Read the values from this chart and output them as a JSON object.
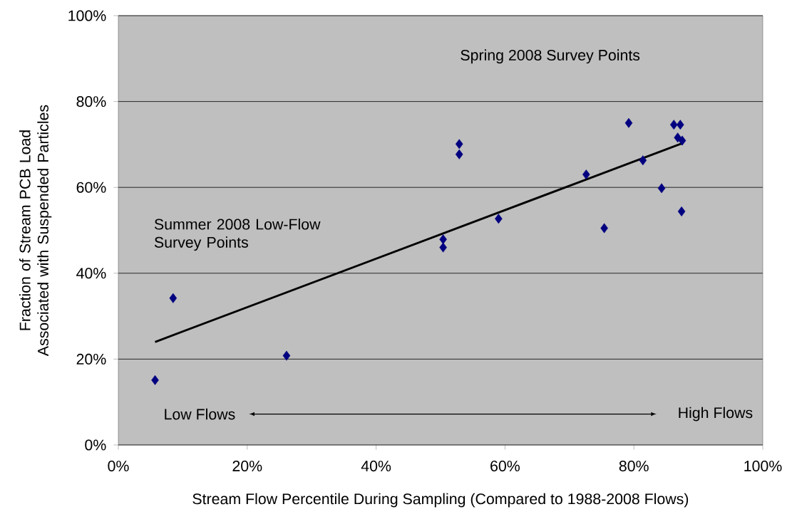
{
  "chart_data": {
    "type": "scatter",
    "xlabel": "Stream Flow Percentile During Sampling (Compared to 1988-2008  Flows)",
    "ylabel": "Fraction of Stream PCB Load Associated with Suspended Particles",
    "annotations": [
      "Spring 2008 Survey Points",
      "Summer 2008 Low-Flow Survey Points",
      "Low Flows",
      "High Flows"
    ],
    "series": [
      {
        "color": "#000080",
        "marker": "diamond",
        "x": [
          5.7,
          8.5,
          26.1,
          50.4,
          50.4,
          52.9,
          52.9,
          59.0,
          72.6,
          75.4,
          79.2,
          81.4,
          84.3,
          86.2,
          86.8,
          87.2,
          87.5,
          87.4
        ],
        "values": [
          15.1,
          34.2,
          20.8,
          47.9,
          46.0,
          70.1,
          67.7,
          52.7,
          63.0,
          50.5,
          75.0,
          66.3,
          59.8,
          74.6,
          71.6,
          74.6,
          70.9,
          54.4
        ]
      },
      {
        "type": "line",
        "color": "#000000",
        "marker": "none",
        "x": [
          5.7,
          87.4
        ],
        "values": [
          24.0,
          70.2
        ]
      }
    ],
    "xlim": [
      0,
      100
    ],
    "ylim": [
      0,
      100
    ],
    "xticks": [
      {
        "value": 0,
        "label": "0%"
      },
      {
        "value": 20,
        "label": "20%"
      },
      {
        "value": 40,
        "label": "40%"
      },
      {
        "value": 60,
        "label": "60%"
      },
      {
        "value": 80,
        "label": "80%"
      },
      {
        "value": 100,
        "label": "100%"
      }
    ],
    "yticks": [
      {
        "value": 0,
        "label": "0%"
      },
      {
        "value": 20,
        "label": "20%"
      },
      {
        "value": 40,
        "label": "40%"
      },
      {
        "value": 60,
        "label": "60%"
      },
      {
        "value": 80,
        "label": "80%"
      },
      {
        "value": 100,
        "label": "100%"
      }
    ],
    "grid": "y"
  }
}
